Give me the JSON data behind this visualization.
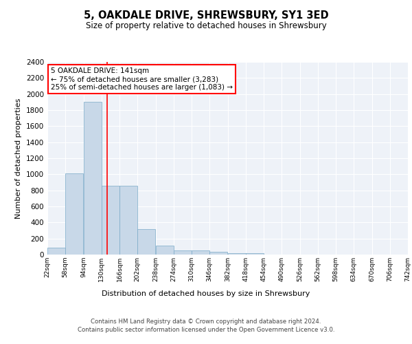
{
  "title": "5, OAKDALE DRIVE, SHREWSBURY, SY1 3ED",
  "subtitle": "Size of property relative to detached houses in Shrewsbury",
  "xlabel": "Distribution of detached houses by size in Shrewsbury",
  "ylabel": "Number of detached properties",
  "bar_color": "#c8d8e8",
  "bar_edge_color": "#7aaac8",
  "background_color": "#eef2f8",
  "grid_color": "white",
  "vline_color": "red",
  "vline_x": 141,
  "annotation_text": "5 OAKDALE DRIVE: 141sqm\n← 75% of detached houses are smaller (3,283)\n25% of semi-detached houses are larger (1,083) →",
  "annotation_box_color": "white",
  "annotation_box_edge": "red",
  "bin_edges": [
    22,
    58,
    94,
    130,
    166,
    202,
    238,
    274,
    310,
    346,
    382,
    418,
    454,
    490,
    526,
    562,
    598,
    634,
    670,
    706,
    742
  ],
  "bin_heights": [
    90,
    1010,
    1900,
    860,
    860,
    315,
    115,
    55,
    50,
    35,
    20,
    20,
    0,
    0,
    0,
    0,
    0,
    0,
    0,
    0
  ],
  "tick_labels": [
    "22sqm",
    "58sqm",
    "94sqm",
    "130sqm",
    "166sqm",
    "202sqm",
    "238sqm",
    "274sqm",
    "310sqm",
    "346sqm",
    "382sqm",
    "418sqm",
    "454sqm",
    "490sqm",
    "526sqm",
    "562sqm",
    "598sqm",
    "634sqm",
    "670sqm",
    "706sqm",
    "742sqm"
  ],
  "ylim": [
    0,
    2400
  ],
  "yticks": [
    0,
    200,
    400,
    600,
    800,
    1000,
    1200,
    1400,
    1600,
    1800,
    2000,
    2200,
    2400
  ],
  "footer_line1": "Contains HM Land Registry data © Crown copyright and database right 2024.",
  "footer_line2": "Contains public sector information licensed under the Open Government Licence v3.0."
}
